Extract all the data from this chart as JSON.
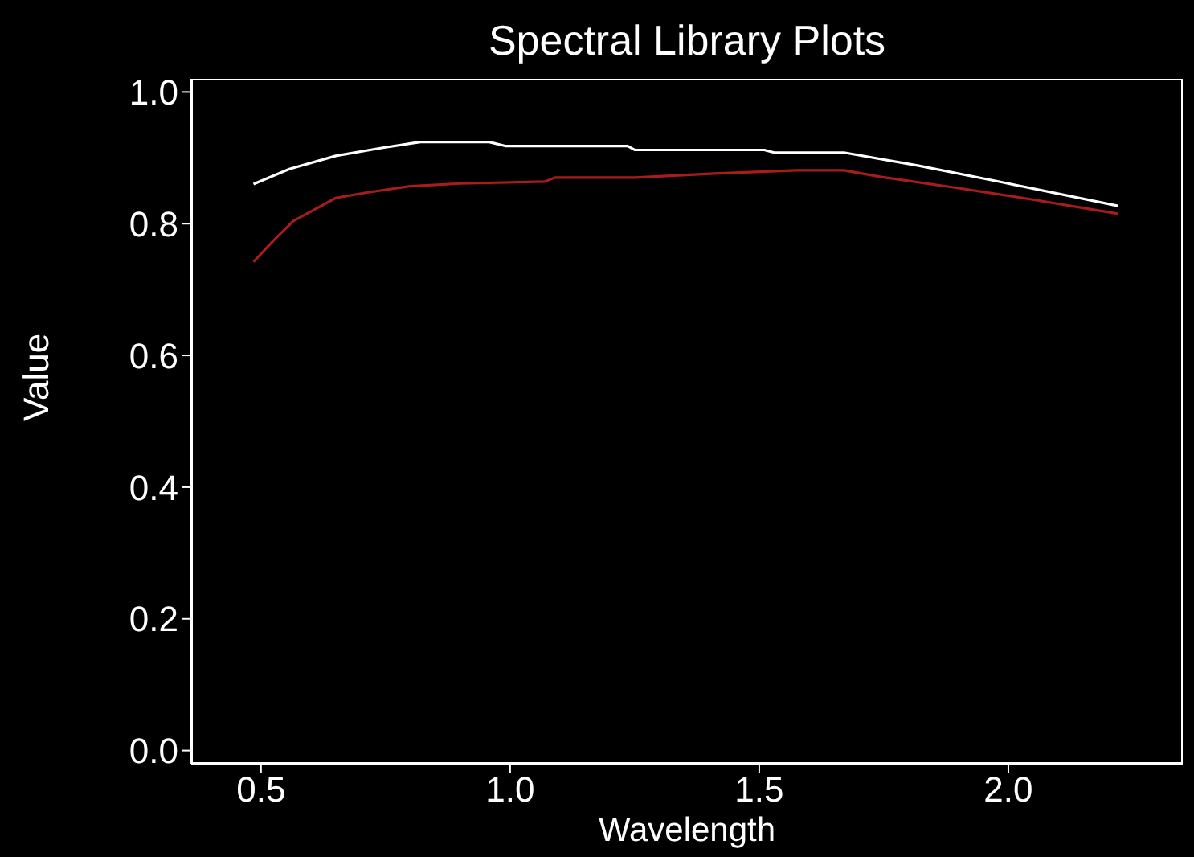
{
  "chart_data": {
    "type": "line",
    "title": "Spectral Library Plots",
    "xlabel": "Wavelength",
    "ylabel": "Value",
    "xlim": [
      0.36,
      2.35
    ],
    "ylim": [
      -0.02,
      1.02
    ],
    "xticks": [
      {
        "value": 0.5,
        "label": "0.5"
      },
      {
        "value": 1,
        "label": "1.0"
      },
      {
        "value": 1.5,
        "label": "1.5"
      },
      {
        "value": 2,
        "label": "2.0"
      }
    ],
    "yticks": [
      {
        "value": 0,
        "label": "0.0"
      },
      {
        "value": 0.2,
        "label": "0.2"
      },
      {
        "value": 0.4,
        "label": "0.4"
      },
      {
        "value": 0.6,
        "label": "0.6"
      },
      {
        "value": 0.8,
        "label": "0.8"
      },
      {
        "value": 1,
        "label": "1.0"
      }
    ],
    "grid": false,
    "marker": "none",
    "line_style": "solid",
    "series": [
      {
        "color": "#ffffff",
        "x": [
          0.485,
          0.557,
          0.65,
          0.742,
          0.82,
          0.958,
          0.99,
          1.236,
          1.25,
          1.51,
          1.53,
          1.67,
          1.82,
          1.98,
          2.22
        ],
        "values": [
          0.86,
          0.883,
          0.903,
          0.915,
          0.924,
          0.924,
          0.918,
          0.918,
          0.912,
          0.912,
          0.908,
          0.908,
          0.888,
          0.864,
          0.827
        ]
      },
      {
        "color": "#a81c1c",
        "x": [
          0.485,
          0.526,
          0.565,
          0.65,
          0.71,
          0.8,
          0.9,
          1.07,
          1.09,
          1.25,
          1.41,
          1.575,
          1.67,
          1.745,
          1.9,
          2.054,
          2.22
        ],
        "values": [
          0.742,
          0.775,
          0.804,
          0.839,
          0.847,
          0.857,
          0.861,
          0.864,
          0.87,
          0.87,
          0.876,
          0.881,
          0.881,
          0.871,
          0.854,
          0.836,
          0.815
        ]
      }
    ]
  }
}
